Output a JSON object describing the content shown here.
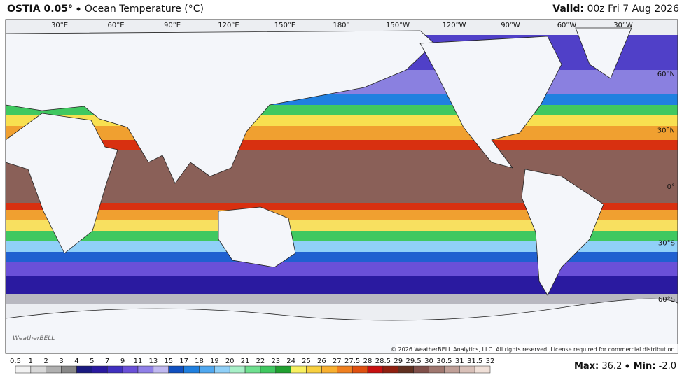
{
  "header": {
    "product": "OSTIA 0.05°",
    "field": "Ocean Temperature (°C)",
    "valid_label": "Valid:",
    "valid_time": "00z Fri 7 Aug 2026"
  },
  "map": {
    "lon_labels": [
      "30°E",
      "60°E",
      "90°E",
      "120°E",
      "150°E",
      "180°",
      "150°W",
      "120°W",
      "90°W",
      "60°W",
      "30°W"
    ],
    "lat_labels": [
      "60°N",
      "30°N",
      "0°",
      "30°S",
      "60°S"
    ],
    "logo": "WeatherBELL",
    "copyright": "© 2026 WeatherBELL Analytics, LLC. All rights reserved. License required for commercial distribution."
  },
  "legend": {
    "ticks": [
      0.5,
      1,
      2,
      3,
      4,
      5,
      7,
      9,
      11,
      13,
      15,
      17,
      18,
      19,
      20,
      21,
      22,
      23,
      24,
      25,
      26,
      27,
      27.5,
      28,
      28.5,
      29,
      29.5,
      30,
      30.5,
      31,
      31.5,
      32
    ],
    "colors": [
      "#f2f2f2",
      "#d8d8d8",
      "#b0b0b0",
      "#888888",
      "#1a1a80",
      "#2a1aa0",
      "#4030c0",
      "#6a50d8",
      "#9080e8",
      "#c0b8f0",
      "#1050c0",
      "#2080e0",
      "#50a8f0",
      "#90d0f8",
      "#a8f0c8",
      "#70e090",
      "#40c860",
      "#20a030",
      "#f8f060",
      "#f8d040",
      "#f8b030",
      "#f08020",
      "#e05010",
      "#c81010",
      "#902010",
      "#603020",
      "#80504a",
      "#a07870",
      "#c0a098",
      "#d8c0b8",
      "#f0e0d8"
    ]
  },
  "stats": {
    "max_label": "Max:",
    "max_value": "36.2",
    "min_label": "Min:",
    "min_value": "-2.0"
  }
}
